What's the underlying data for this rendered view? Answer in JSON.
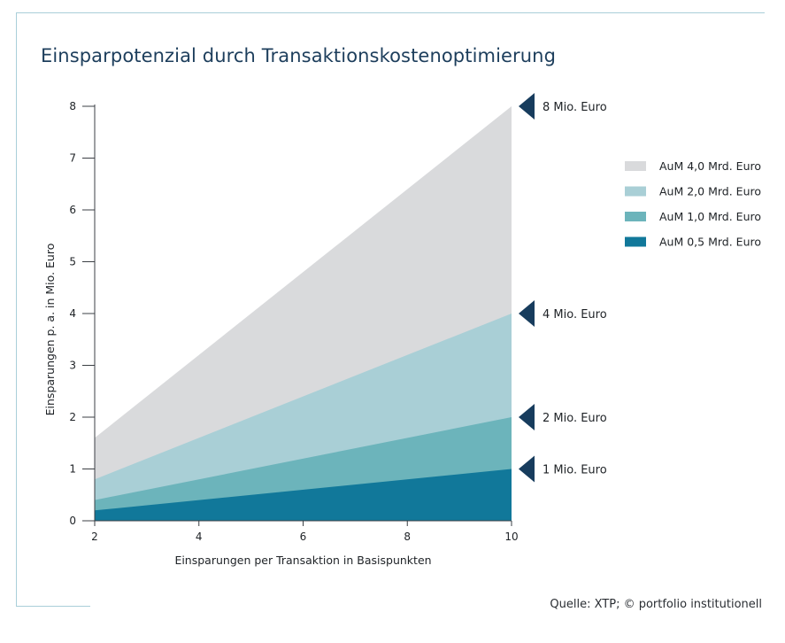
{
  "header": {
    "title": "Einsparpotenzial durch Transaktionskostenoptimierung"
  },
  "footer": {
    "source": "Quelle: XTP; © portfolio institutionell"
  },
  "colors": {
    "aum_4": "#d9dadc",
    "aum_2": "#a9cfd6",
    "aum_1": "#6cb4bb",
    "aum_05": "#11789a",
    "marker": "#173c5d",
    "title": "#1d3e5c"
  },
  "chart_data": {
    "type": "area",
    "title": "Einsparpotenzial durch Transaktionskostenoptimierung",
    "xlabel": "Einsparungen per Transaktion in Basispunkten",
    "ylabel": "Einsparungen p. a. in Mio. Euro",
    "x": [
      2,
      10
    ],
    "xlim": [
      2,
      10
    ],
    "ylim": [
      0,
      8
    ],
    "x_ticks": [
      2,
      4,
      6,
      8,
      10
    ],
    "y_ticks": [
      0,
      1,
      2,
      3,
      4,
      5,
      6,
      7,
      8
    ],
    "grid": false,
    "legend_position": "right",
    "series": [
      {
        "name": "AuM 4,0 Mrd. Euro",
        "values": [
          1.6,
          8
        ],
        "color_key": "aum_4"
      },
      {
        "name": "AuM 2,0 Mrd. Euro",
        "values": [
          0.8,
          4
        ],
        "color_key": "aum_2"
      },
      {
        "name": "AuM 1,0 Mrd. Euro",
        "values": [
          0.4,
          2
        ],
        "color_key": "aum_1"
      },
      {
        "name": "AuM 0,5 Mrd. Euro",
        "values": [
          0.2,
          1
        ],
        "color_key": "aum_05"
      }
    ],
    "annotations": [
      {
        "text": "8 Mio. Euro",
        "y": 8
      },
      {
        "text": "4 Mio. Euro",
        "y": 4
      },
      {
        "text": "2 Mio. Euro",
        "y": 2
      },
      {
        "text": "1 Mio. Euro",
        "y": 1
      }
    ]
  }
}
